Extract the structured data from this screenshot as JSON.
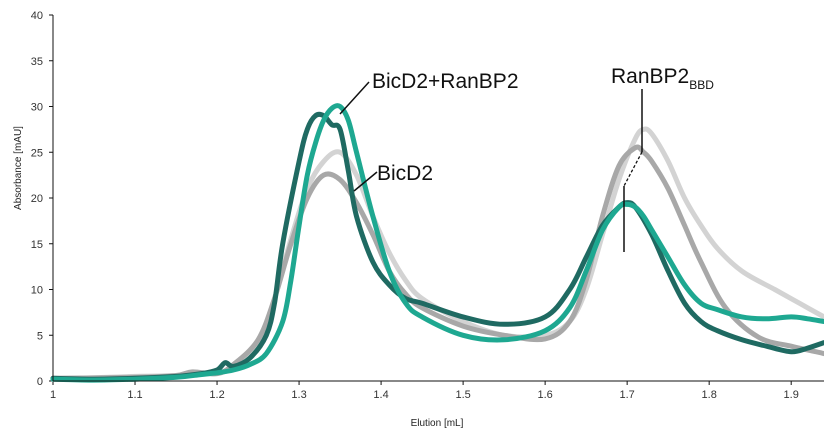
{
  "chart_data": {
    "type": "line",
    "title": "",
    "xlabel": "Elution [mL]",
    "ylabel": "Absorbance [mAU]",
    "xlim": [
      1,
      1.94
    ],
    "ylim": [
      0,
      40
    ],
    "xticks": [
      1,
      1.1,
      1.2,
      1.3,
      1.4,
      1.5,
      1.6,
      1.7,
      1.8,
      1.9
    ],
    "yticks": [
      0,
      5,
      10,
      15,
      20,
      25,
      30,
      35,
      40
    ],
    "grid": false,
    "legend": "none",
    "series": [
      {
        "color": "#d3d3d3",
        "x": [
          1.0,
          1.1,
          1.15,
          1.2,
          1.22,
          1.25,
          1.27,
          1.29,
          1.31,
          1.33,
          1.35,
          1.37,
          1.39,
          1.41,
          1.43,
          1.45,
          1.5,
          1.55,
          1.6,
          1.63,
          1.65,
          1.67,
          1.69,
          1.71,
          1.72,
          1.73,
          1.75,
          1.77,
          1.79,
          1.81,
          1.84,
          1.88,
          1.91,
          1.94
        ],
        "y": [
          0.2,
          0.5,
          0.6,
          0.9,
          1.5,
          4.0,
          9.0,
          15.5,
          21.0,
          24.0,
          25.0,
          22.5,
          18.0,
          14.0,
          11.0,
          9.0,
          6.5,
          5.0,
          5.0,
          6.5,
          10.0,
          16.0,
          22.0,
          26.5,
          27.5,
          27.0,
          24.0,
          20.0,
          17.0,
          14.5,
          12.0,
          10.0,
          8.5,
          7.0
        ]
      },
      {
        "color": "#a8a8a8",
        "x": [
          1.0,
          1.1,
          1.15,
          1.17,
          1.2,
          1.22,
          1.25,
          1.27,
          1.29,
          1.31,
          1.33,
          1.35,
          1.37,
          1.39,
          1.41,
          1.43,
          1.45,
          1.5,
          1.55,
          1.6,
          1.63,
          1.65,
          1.67,
          1.69,
          1.71,
          1.72,
          1.73,
          1.75,
          1.77,
          1.79,
          1.82,
          1.86,
          1.9,
          1.93,
          1.94
        ],
        "y": [
          0.3,
          0.4,
          0.6,
          1.0,
          0.8,
          1.8,
          4.5,
          9.0,
          15.0,
          20.0,
          22.5,
          22.0,
          19.5,
          16.0,
          12.0,
          9.5,
          8.0,
          6.0,
          5.0,
          4.6,
          6.5,
          11.0,
          18.0,
          23.5,
          25.5,
          25.0,
          24.0,
          21.0,
          17.0,
          13.0,
          8.0,
          4.8,
          3.8,
          3.2,
          3.0
        ]
      },
      {
        "color": "#1f6a62",
        "x": [
          1.0,
          1.05,
          1.1,
          1.15,
          1.18,
          1.2,
          1.21,
          1.22,
          1.24,
          1.26,
          1.27,
          1.28,
          1.3,
          1.31,
          1.32,
          1.33,
          1.34,
          1.35,
          1.36,
          1.37,
          1.39,
          1.41,
          1.43,
          1.45,
          1.5,
          1.55,
          1.6,
          1.63,
          1.65,
          1.67,
          1.69,
          1.7,
          1.71,
          1.73,
          1.75,
          1.77,
          1.79,
          1.81,
          1.84,
          1.87,
          1.9,
          1.92,
          1.94
        ],
        "y": [
          0.3,
          0.2,
          0.3,
          0.5,
          0.8,
          1.2,
          2.0,
          1.6,
          2.5,
          5.0,
          8.5,
          15.0,
          24.0,
          27.5,
          29.0,
          29.0,
          28.0,
          27.5,
          23.0,
          18.0,
          13.0,
          10.5,
          9.0,
          8.5,
          7.0,
          6.2,
          7.0,
          10.0,
          13.5,
          17.0,
          19.0,
          19.5,
          19.0,
          16.0,
          12.0,
          8.5,
          6.5,
          5.5,
          4.5,
          3.8,
          3.2,
          3.6,
          4.2
        ]
      },
      {
        "color": "#1ea891",
        "x": [
          1.0,
          1.05,
          1.1,
          1.15,
          1.18,
          1.2,
          1.22,
          1.24,
          1.26,
          1.28,
          1.29,
          1.3,
          1.31,
          1.32,
          1.33,
          1.34,
          1.35,
          1.36,
          1.37,
          1.39,
          1.41,
          1.43,
          1.45,
          1.5,
          1.55,
          1.6,
          1.63,
          1.65,
          1.67,
          1.69,
          1.7,
          1.71,
          1.72,
          1.73,
          1.75,
          1.77,
          1.79,
          1.81,
          1.84,
          1.87,
          1.9,
          1.92,
          1.94
        ],
        "y": [
          0.2,
          0.1,
          0.2,
          0.4,
          0.7,
          0.9,
          1.2,
          1.8,
          3.0,
          6.5,
          11.0,
          17.0,
          22.5,
          26.0,
          28.5,
          29.8,
          30.0,
          28.5,
          25.0,
          18.0,
          12.0,
          8.5,
          7.0,
          5.0,
          4.5,
          5.5,
          8.0,
          12.0,
          16.5,
          19.0,
          19.3,
          19.0,
          18.0,
          16.5,
          13.5,
          10.5,
          8.5,
          7.8,
          7.0,
          6.8,
          7.0,
          6.8,
          6.5
        ]
      }
    ],
    "annotations": [
      {
        "text": "BicD2+RanBP2",
        "sub": ""
      },
      {
        "text": "BicD2",
        "sub": ""
      },
      {
        "text": "RanBP2",
        "sub": "BBD"
      }
    ]
  }
}
